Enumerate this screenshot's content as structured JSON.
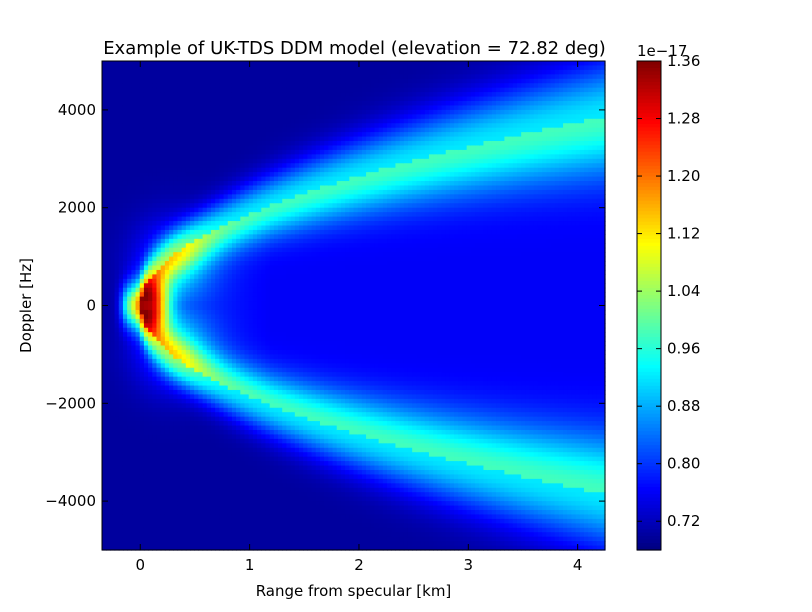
{
  "chart_data": {
    "type": "heatmap",
    "title": "Example of UK-TDS DDM model (elevation = 72.82 deg)",
    "xlabel": "Range from specular [km]",
    "ylabel": "Doppler [Hz]",
    "xlim": [
      -0.35,
      4.25
    ],
    "ylim": [
      -5000,
      5000
    ],
    "xticks": [
      0,
      1,
      2,
      3,
      4
    ],
    "xtick_labels": [
      "0",
      "1",
      "2",
      "3",
      "4"
    ],
    "yticks": [
      -4000,
      -2000,
      0,
      2000,
      4000
    ],
    "ytick_labels": [
      "−4000",
      "−2000",
      "0",
      "2000",
      "4000"
    ],
    "colormap": "jet",
    "colorbar": {
      "min": 0.68,
      "max": 1.36,
      "ticks": [
        0.72,
        0.8,
        0.88,
        0.96,
        1.04,
        1.12,
        1.2,
        1.28,
        1.36
      ],
      "tick_labels": [
        "0.72",
        "0.80",
        "0.88",
        "0.96",
        "1.04",
        "1.12",
        "1.20",
        "1.28",
        "1.36"
      ],
      "offset_text": "1e−17"
    },
    "features": {
      "peak": {
        "x": 0.1,
        "y": 0,
        "value": 1.36
      },
      "horseshoe_ridge": {
        "apex_x": 0.0,
        "curvature_hz2_per_km": 3500000,
        "value": 0.92
      },
      "background_inside": 0.76,
      "background_outside": 0.7
    },
    "grid": false
  }
}
